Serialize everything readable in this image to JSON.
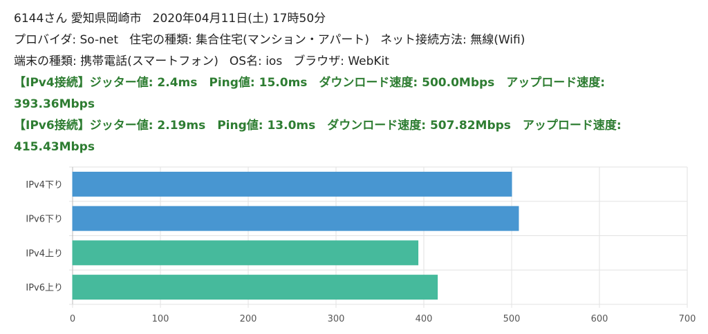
{
  "header": {
    "id_location": "6144さん 愛知県岡崎市",
    "datetime": "2020年04月11日(土) 17時50分"
  },
  "line2": {
    "provider": "プロバイダ: So-net",
    "housing": "住宅の種類: 集合住宅(マンション・アパート)",
    "connection": "ネット接続方法: 無線(Wifi)"
  },
  "line3": {
    "device": "端末の種類: 携帯電話(スマートフォン)",
    "os": "OS名: ios",
    "browser": "ブラウザ: WebKit"
  },
  "ipv4_result": {
    "line1": "【IPv4接続】ジッター値: 2.4ms　Ping値: 15.0ms　ダウンロード速度: 500.0Mbps　アップロード速度:",
    "line2": "393.36Mbps"
  },
  "ipv6_result": {
    "line1": "【IPv6接続】ジッター値: 2.19ms　Ping値: 13.0ms　ダウンロード速度: 507.82Mbps　アップロード速度:",
    "line2": "415.43Mbps"
  },
  "chart_data": {
    "type": "bar",
    "orientation": "horizontal",
    "categories": [
      "IPv4下り",
      "IPv6下り",
      "IPv4上り",
      "IPv6上り"
    ],
    "values": [
      500.0,
      507.82,
      393.36,
      415.43
    ],
    "colors": [
      "#4494d0",
      "#4494d0",
      "#42b99a",
      "#42b99a"
    ],
    "xlim": [
      0,
      700
    ],
    "xticks": [
      0,
      100,
      200,
      300,
      400,
      500,
      600,
      700
    ],
    "grid": true
  }
}
